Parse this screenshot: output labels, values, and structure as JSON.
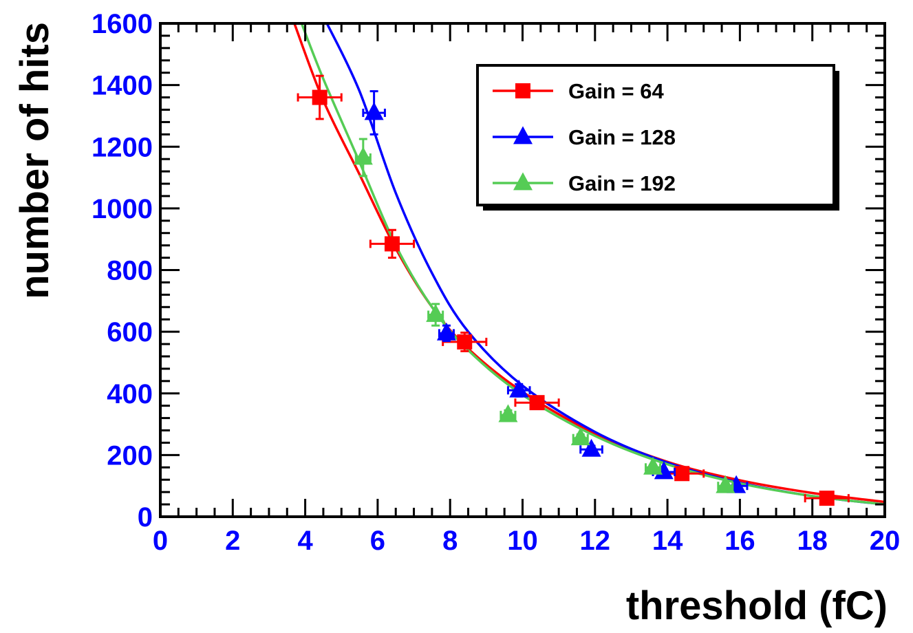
{
  "chart_data": {
    "type": "scatter",
    "xlabel": "threshold (fC)",
    "ylabel": "number of hits",
    "xlim": [
      0,
      20
    ],
    "ylim": [
      0,
      1600
    ],
    "x_ticks": [
      "0",
      "2",
      "4",
      "6",
      "8",
      "10",
      "12",
      "14",
      "16",
      "18",
      "20"
    ],
    "y_ticks": [
      "0",
      "200",
      "400",
      "600",
      "800",
      "1000",
      "1200",
      "1400",
      "1600"
    ],
    "grid": false,
    "legend_position": "top-right",
    "tick_label_color": "#0000ff",
    "series": [
      {
        "name": "Gain = 64",
        "color": "#ff0000",
        "marker": "square",
        "points": [
          {
            "x": 4.4,
            "y": 1360,
            "xerr": 0.6,
            "yerr": 70
          },
          {
            "x": 6.4,
            "y": 885,
            "xerr": 0.6,
            "yerr": 45
          },
          {
            "x": 8.4,
            "y": 567,
            "xerr": 0.6,
            "yerr": 30
          },
          {
            "x": 10.4,
            "y": 370,
            "xerr": 0.6,
            "yerr": 20
          },
          {
            "x": 14.4,
            "y": 140,
            "xerr": 0.6,
            "yerr": 10
          },
          {
            "x": 18.4,
            "y": 60,
            "xerr": 0.6,
            "yerr": 6
          }
        ],
        "fit": [
          [
            3.7,
            1600
          ],
          [
            4.5,
            1350
          ],
          [
            5.5,
            1110
          ],
          [
            6.5,
            870
          ],
          [
            7.5,
            680
          ],
          [
            8.5,
            545
          ],
          [
            10,
            405
          ],
          [
            12,
            270
          ],
          [
            14,
            178
          ],
          [
            16,
            118
          ],
          [
            18,
            77
          ],
          [
            20,
            48
          ]
        ]
      },
      {
        "name": "Gain = 128",
        "color": "#0000ff",
        "marker": "triangle",
        "points": [
          {
            "x": 5.9,
            "y": 1310,
            "xerr": 0.3,
            "yerr": 70
          },
          {
            "x": 7.9,
            "y": 595,
            "xerr": 0.2,
            "yerr": 25
          },
          {
            "x": 9.9,
            "y": 410,
            "xerr": 0.3,
            "yerr": 20
          },
          {
            "x": 11.9,
            "y": 218,
            "xerr": 0.3,
            "yerr": 12
          },
          {
            "x": 13.9,
            "y": 145,
            "xerr": 0.3,
            "yerr": 8
          },
          {
            "x": 15.9,
            "y": 100,
            "xerr": 0.3,
            "yerr": 6
          }
        ],
        "fit": [
          [
            4.6,
            1600
          ],
          [
            5.5,
            1380
          ],
          [
            6.5,
            1050
          ],
          [
            7.5,
            790
          ],
          [
            8.5,
            600
          ],
          [
            10,
            425
          ],
          [
            12,
            275
          ],
          [
            14,
            175
          ],
          [
            16,
            110
          ],
          [
            18,
            67
          ],
          [
            20,
            40
          ]
        ]
      },
      {
        "name": "Gain = 192",
        "color": "#55cc55",
        "marker": "triangle",
        "points": [
          {
            "x": 5.6,
            "y": 1165,
            "xerr": 0.2,
            "yerr": 60
          },
          {
            "x": 7.6,
            "y": 655,
            "xerr": 0.2,
            "yerr": 35
          },
          {
            "x": 9.6,
            "y": 330,
            "xerr": 0.2,
            "yerr": 15
          },
          {
            "x": 11.6,
            "y": 255,
            "xerr": 0.2,
            "yerr": 12
          },
          {
            "x": 13.6,
            "y": 160,
            "xerr": 0.2,
            "yerr": 8
          },
          {
            "x": 15.6,
            "y": 100,
            "xerr": 0.2,
            "yerr": 6
          }
        ],
        "fit": [
          [
            3.9,
            1600
          ],
          [
            4.5,
            1420
          ],
          [
            5.5,
            1150
          ],
          [
            6.5,
            880
          ],
          [
            7.5,
            680
          ],
          [
            8.5,
            540
          ],
          [
            10,
            395
          ],
          [
            12,
            262
          ],
          [
            14,
            170
          ],
          [
            16,
            108
          ],
          [
            18,
            67
          ],
          [
            20,
            40
          ]
        ]
      }
    ]
  }
}
